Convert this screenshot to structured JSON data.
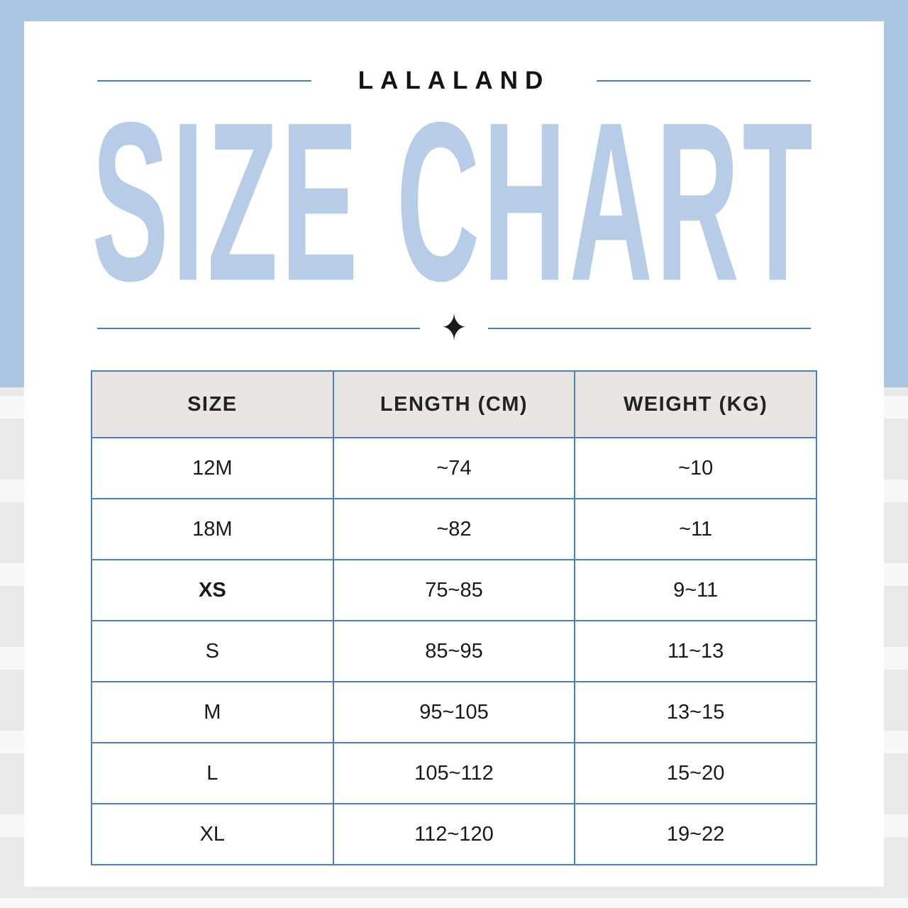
{
  "brand": "LALALAND",
  "title": "SIZE CHART",
  "divider_icon": "sparkle",
  "chart_data": {
    "type": "table",
    "title": "SIZE CHART",
    "columns": [
      "SIZE",
      "LENGTH (CM)",
      "WEIGHT (KG)"
    ],
    "rows": [
      [
        "12M",
        "~74",
        "~10"
      ],
      [
        "18M",
        "~82",
        "~11"
      ],
      [
        "XS",
        "75~85",
        "9~11"
      ],
      [
        "S",
        "85~95",
        "11~13"
      ],
      [
        "M",
        "95~105",
        "13~15"
      ],
      [
        "L",
        "105~112",
        "15~20"
      ],
      [
        "XL",
        "112~120",
        "19~22"
      ]
    ],
    "bold_sizes": [
      "XS"
    ]
  },
  "icons": {
    "sparkle": "✦"
  },
  "colors": {
    "frame_blue": "#a9c5e1",
    "accent_line_blue": "#4d7fbf",
    "table_border_blue": "#4c7ec0",
    "title_light_blue": "#b7cce6",
    "header_cell_bg": "#e9e6e2",
    "text_dark": "#191919",
    "stripe_gray": "#e9e9e9",
    "card_white": "#ffffff"
  }
}
